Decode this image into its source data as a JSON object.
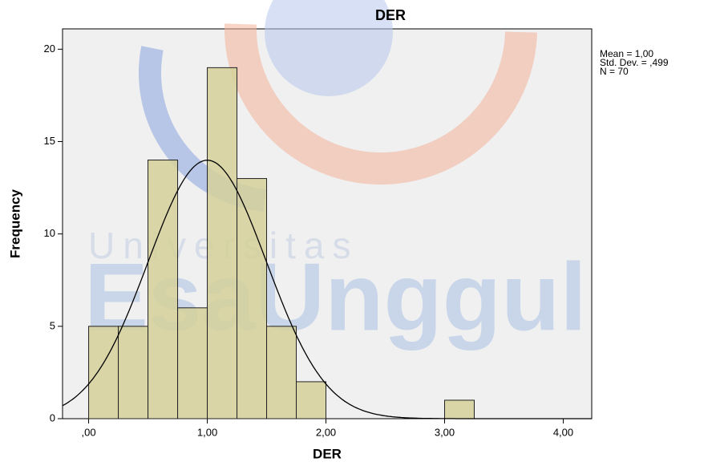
{
  "chart_data": {
    "type": "histogram",
    "title": "DER",
    "x_label": "DER",
    "y_label": "Frequency",
    "bins": [
      0,
      0.25,
      0.5,
      0.75,
      1,
      1.25,
      1.5,
      1.75,
      2,
      2.25,
      2.5,
      2.75,
      3,
      3.25
    ],
    "counts": [
      5,
      5,
      14,
      6,
      19,
      13,
      5,
      2,
      0,
      0,
      0,
      0,
      1
    ],
    "color": "#d5d09a",
    "xlim": [
      -0.22,
      4.24
    ],
    "ylim": [
      0,
      21.1
    ],
    "xticks": [
      {
        "value": 0,
        "label": ",00"
      },
      {
        "value": 1,
        "label": "1,00"
      },
      {
        "value": 2,
        "label": "2,00"
      },
      {
        "value": 3,
        "label": "3,00"
      },
      {
        "value": 4,
        "label": "4,00"
      }
    ],
    "yticks": [
      0,
      5,
      10,
      15,
      20
    ],
    "curve": {
      "mean": 1.0,
      "sd": 0.499,
      "n": 70,
      "labels": [
        "Mean = 1,00",
        "Std. Dev. = ,499",
        "N = 70"
      ]
    },
    "watermark": [
      "Universitas",
      "EsaUnggul"
    ]
  }
}
